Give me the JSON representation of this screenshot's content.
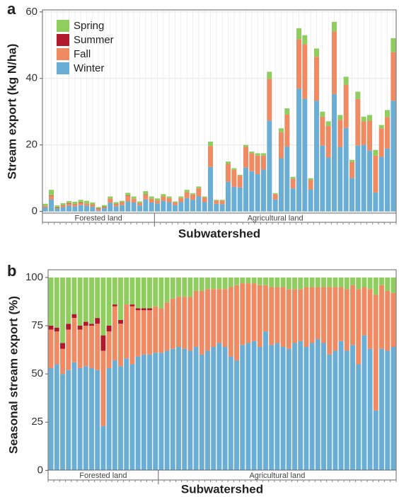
{
  "chart_data": [
    {
      "type": "stacked_bar",
      "panel": "a",
      "ylabel": "Stream export (kg N/ha)",
      "xlabel": "Subwatershed",
      "categories": [
        null,
        null,
        null,
        null,
        null,
        null,
        null,
        null,
        null,
        null,
        null,
        null,
        null,
        null,
        null,
        null,
        null,
        null,
        null,
        null,
        null,
        null,
        null,
        null,
        null,
        null,
        null,
        null,
        null,
        null,
        null,
        null,
        null,
        null,
        null,
        null,
        null,
        null,
        null,
        null,
        null,
        null,
        null,
        null,
        null,
        null,
        null,
        null,
        null,
        null,
        null,
        null,
        null,
        null,
        null,
        null,
        null,
        null,
        null,
        null
      ],
      "groups": [
        {
          "label": "Forested land",
          "n": 19
        },
        {
          "label": "Agricultural land",
          "n": 41
        }
      ],
      "series": [
        {
          "name": "Winter",
          "color": "#6aaed6",
          "values": [
            1.2,
            3.6,
            0.9,
            1.3,
            1.7,
            1.5,
            1.9,
            1.7,
            1.4,
            0.3,
            1.0,
            2.6,
            1.5,
            1.9,
            3.0,
            2.7,
            1.8,
            3.6,
            2.7,
            2.4,
            3.2,
            2.8,
            1.9,
            2.8,
            4.0,
            3.5,
            4.5,
            2.8,
            13.4,
            2.3,
            2.2,
            8.9,
            7.4,
            7.2,
            13.2,
            12.1,
            11.2,
            12.6,
            27.3,
            3.6,
            16.0,
            19.5,
            6.9,
            36.9,
            33.9,
            6.6,
            33.3,
            19.8,
            16.2,
            35.3,
            19.4,
            25.1,
            10.1,
            19.8,
            20.0,
            18.3,
            5.7,
            16.4,
            18.9,
            33.3
          ]
        },
        {
          "name": "Fall",
          "color": "#f08a62",
          "values": [
            0.5,
            1.1,
            0.2,
            0.5,
            0.7,
            0.6,
            0.7,
            0.7,
            0.6,
            0.5,
            0.3,
            1.3,
            0.6,
            0.9,
            1.7,
            1.1,
            0.7,
            1.4,
            1.1,
            0.9,
            1.3,
            1.2,
            0.8,
            1.2,
            1.8,
            1.6,
            2.5,
            1.4,
            6.3,
            1.0,
            1.1,
            5.4,
            5.1,
            3.5,
            6.2,
            5.4,
            5.6,
            4.2,
            12.6,
            1.6,
            7.8,
            9.6,
            2.9,
            14.9,
            16.4,
            2.9,
            13.2,
            8.7,
            9.5,
            18.8,
            8.1,
            13.0,
            4.8,
            14.0,
            7.1,
            9.0,
            11.1,
            8.6,
            9.5,
            14.6
          ]
        },
        {
          "name": "Summer",
          "color": "#b2182b",
          "values": [
            0.0,
            0.1,
            0.1,
            0.1,
            0.1,
            0.1,
            0.1,
            0.0,
            0.1,
            0.1,
            0.1,
            0.0,
            0.1,
            0.0,
            0.1,
            0.0,
            0.0,
            0.1,
            0.0,
            0,
            0,
            0,
            0,
            0,
            0,
            0,
            0,
            0,
            0,
            0,
            0,
            0,
            0,
            0,
            0,
            0,
            0,
            0,
            0,
            0,
            0,
            0,
            0,
            0,
            0,
            0,
            0,
            0,
            0,
            0,
            0,
            0,
            0,
            0,
            0,
            0,
            0,
            0,
            0,
            0
          ]
        },
        {
          "name": "Spring",
          "color": "#8fce5e",
          "values": [
            0.6,
            1.7,
            0.6,
            0.6,
            0.6,
            0.7,
            0.8,
            0.8,
            0.6,
            0.4,
            0.5,
            0.6,
            0.6,
            0.4,
            0.8,
            0.7,
            0.5,
            1.0,
            0.7,
            0.6,
            0.7,
            0.5,
            0.3,
            0.5,
            0.7,
            0.4,
            0.5,
            0.3,
            1.3,
            0.2,
            0.2,
            0.7,
            0.5,
            0.3,
            0.6,
            0.5,
            0.7,
            0.7,
            2.1,
            0.3,
            1.2,
            1.9,
            0.6,
            3.3,
            2.7,
            0.5,
            2.5,
            1.5,
            1.4,
            2.9,
            1.5,
            2.4,
            0.6,
            2.2,
            1.4,
            1.7,
            1.7,
            1.0,
            2.1,
            4.2
          ]
        }
      ],
      "ylim": [
        -0.5,
        60.6
      ],
      "yticks": [
        0,
        20,
        40,
        60
      ],
      "grid": true,
      "legend": "top-left"
    },
    {
      "type": "stacked_bar",
      "panel": "b",
      "ylabel": "Seasonal stream export (%)",
      "xlabel": "Subwatershed",
      "categories": [
        null,
        null,
        null,
        null,
        null,
        null,
        null,
        null,
        null,
        null,
        null,
        null,
        null,
        null,
        null,
        null,
        null,
        null,
        null,
        null,
        null,
        null,
        null,
        null,
        null,
        null,
        null,
        null,
        null,
        null,
        null,
        null,
        null,
        null,
        null,
        null,
        null,
        null,
        null,
        null,
        null,
        null,
        null,
        null,
        null,
        null,
        null,
        null,
        null,
        null,
        null,
        null,
        null,
        null,
        null,
        null,
        null,
        null,
        null,
        null
      ],
      "groups": [
        {
          "label": "Forested land",
          "n": 19
        },
        {
          "label": "Agricultural land",
          "n": 41
        }
      ],
      "series": [
        {
          "name": "Winter",
          "color": "#6aaed6",
          "values": [
            53,
            55,
            50,
            52,
            56,
            53,
            54,
            53,
            52,
            23,
            53,
            57,
            54,
            58,
            55,
            59,
            60,
            60,
            61,
            61,
            62,
            63,
            64,
            63,
            62,
            64,
            60,
            62,
            64,
            66,
            64,
            59,
            57,
            65,
            66,
            67,
            64,
            72,
            65,
            66,
            64,
            63,
            66,
            67,
            64,
            66,
            68,
            66,
            60,
            62,
            67,
            62,
            65,
            55,
            70,
            63,
            31,
            63,
            62,
            64
          ]
        },
        {
          "name": "Fall",
          "color": "#f08a62",
          "values": [
            20,
            17,
            13,
            21,
            23,
            20,
            21,
            22,
            24,
            39,
            19,
            28,
            22,
            28,
            30,
            24,
            23,
            23,
            24,
            23,
            25,
            26,
            26,
            27,
            28,
            29,
            33,
            32,
            30,
            28,
            30,
            36,
            39,
            32,
            31,
            30,
            32,
            24,
            30,
            29,
            31,
            31,
            28,
            27,
            31,
            29,
            27,
            29,
            35,
            33,
            28,
            32,
            31,
            39,
            25,
            31,
            60,
            33,
            31,
            28
          ]
        },
        {
          "name": "Summer",
          "color": "#b2182b",
          "values": [
            2,
            2,
            3,
            3,
            2,
            2,
            2,
            1,
            3,
            8,
            3,
            1,
            2,
            0,
            1,
            1,
            1,
            1,
            0,
            0,
            0,
            0,
            0,
            0,
            0,
            0,
            0,
            0,
            0,
            0,
            0,
            0,
            0,
            0,
            0,
            0,
            0,
            0,
            0,
            0,
            0,
            0,
            0,
            0,
            0,
            0,
            0,
            0,
            0,
            0,
            0,
            0,
            0,
            0,
            0,
            0,
            0,
            0,
            0,
            0
          ]
        },
        {
          "name": "Spring",
          "color": "#8fce5e",
          "values": [
            25,
            26,
            34,
            24,
            19,
            25,
            23,
            24,
            21,
            30,
            25,
            14,
            22,
            14,
            14,
            16,
            16,
            16,
            15,
            16,
            13,
            11,
            10,
            10,
            10,
            7,
            7,
            6,
            6,
            6,
            6,
            5,
            4,
            3,
            3,
            3,
            4,
            4,
            5,
            5,
            5,
            6,
            6,
            6,
            5,
            5,
            5,
            5,
            5,
            5,
            5,
            6,
            4,
            6,
            5,
            6,
            9,
            4,
            7,
            8
          ]
        }
      ],
      "ylim": [
        -5,
        104
      ],
      "yticks": [
        0,
        25,
        50,
        75,
        100
      ],
      "grid": false
    }
  ]
}
